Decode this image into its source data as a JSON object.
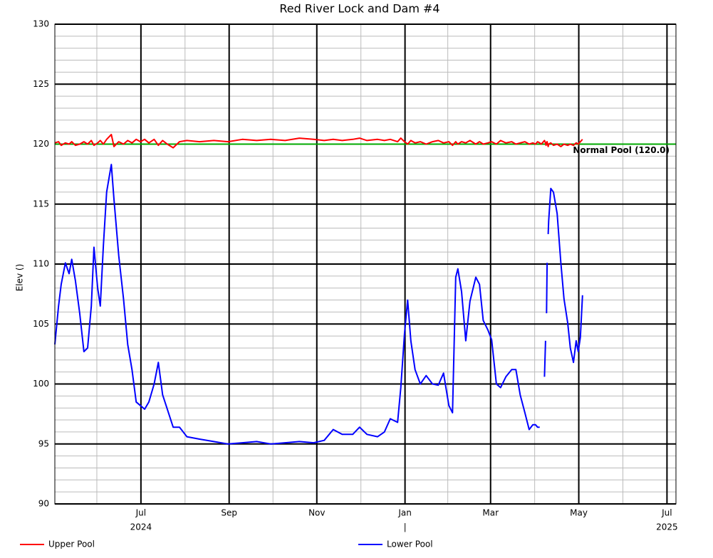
{
  "chart_data": {
    "type": "line",
    "title": "Red River Lock and Dam #4",
    "y_label": "Elev ()",
    "xlim": [
      2024.337,
      2025.513
    ],
    "ylim": [
      90,
      130
    ],
    "yticks": [
      90,
      95,
      100,
      105,
      110,
      115,
      120,
      125,
      130
    ],
    "xticks": [
      {
        "value": 2024.5,
        "label": "Jul"
      },
      {
        "value": 2024.667,
        "label": "Sep"
      },
      {
        "value": 2024.833,
        "label": "Nov"
      },
      {
        "value": 2025.0,
        "label": "Jan"
      },
      {
        "value": 2025.162,
        "label": "Mar"
      },
      {
        "value": 2025.329,
        "label": "May"
      },
      {
        "value": 2025.496,
        "label": "Jul"
      }
    ],
    "x_year_labels": [
      {
        "value": 2024.5,
        "label": "2024"
      },
      {
        "value": 2025.0,
        "label": "|"
      },
      {
        "value": 2025.496,
        "label": "2025"
      }
    ],
    "grid": true,
    "reference_lines": [
      {
        "value": 120,
        "label": "Normal Pool (120.0)",
        "color": "#00aa00"
      }
    ],
    "x": [
      2024.337,
      2024.344,
      2024.349,
      2024.357,
      2024.364,
      2024.369,
      2024.376,
      2024.384,
      2024.392,
      2024.399,
      2024.406,
      2024.411,
      2024.418,
      2024.423,
      2024.429,
      2024.435,
      2024.444,
      2024.449,
      2024.458,
      2024.467,
      2024.475,
      2024.483,
      2024.491,
      2024.499,
      2024.507,
      2024.515,
      2024.525,
      2024.533,
      2024.541,
      2024.55,
      2024.561,
      2024.573,
      2024.587,
      2024.611,
      2024.638,
      2024.665,
      2024.692,
      2024.719,
      2024.746,
      2024.773,
      2024.8,
      2024.827,
      2024.847,
      2024.864,
      2024.881,
      2024.901,
      2024.914,
      2024.928,
      2024.948,
      2024.961,
      2024.972,
      2024.986,
      2024.992,
      2024.999,
      2025.005,
      2025.011,
      2025.019,
      2025.029,
      2025.04,
      2025.052,
      2025.063,
      2025.073,
      2025.083,
      2025.09,
      2025.096,
      2025.1,
      2025.107,
      2025.115,
      2025.123,
      2025.134,
      2025.141,
      2025.148,
      2025.157,
      2025.164,
      2025.173,
      2025.181,
      2025.191,
      2025.202,
      2025.21,
      2025.218,
      2025.227,
      2025.235,
      2025.242,
      2025.247,
      2025.251,
      2025.255,
      2025.258,
      2025.264,
      2025.266,
      2025.267,
      2025.268,
      2025.269,
      2025.27,
      2025.271,
      2025.272,
      2025.276,
      2025.281,
      2025.288,
      2025.295,
      2025.301,
      2025.308,
      2025.313,
      2025.319,
      2025.324,
      2025.328,
      2025.332,
      2025.336
    ],
    "series": [
      {
        "name": "Upper Pool",
        "color": "#ff0000",
        "values": [
          120.1,
          120.2,
          119.9,
          120.1,
          120.0,
          120.2,
          119.9,
          120.0,
          120.2,
          120.0,
          120.3,
          119.9,
          120.1,
          120.3,
          120.0,
          120.4,
          120.8,
          119.8,
          120.2,
          120.0,
          120.3,
          120.1,
          120.4,
          120.2,
          120.4,
          120.1,
          120.4,
          119.9,
          120.3,
          120.0,
          119.7,
          120.2,
          120.3,
          120.2,
          120.3,
          120.2,
          120.4,
          120.3,
          120.4,
          120.3,
          120.5,
          120.4,
          120.3,
          120.4,
          120.3,
          120.4,
          120.5,
          120.3,
          120.4,
          120.3,
          120.4,
          120.2,
          120.5,
          120.2,
          120.0,
          120.3,
          120.1,
          120.2,
          120.0,
          120.2,
          120.3,
          120.1,
          120.2,
          119.9,
          120.2,
          120.0,
          120.2,
          120.1,
          120.3,
          120.0,
          120.2,
          120.0,
          120.1,
          120.2,
          120.0,
          120.3,
          120.1,
          120.2,
          120.0,
          120.1,
          120.2,
          120.0,
          120.1,
          120.0,
          120.2,
          120.1,
          120.0,
          120.3,
          120.1,
          119.9,
          120.1,
          120.2,
          120.0,
          119.8,
          120.0,
          120.1,
          119.9,
          120.0,
          119.8,
          120.0,
          119.9,
          120.0,
          119.9,
          120.1,
          120.0,
          120.2,
          120.4
        ]
      },
      {
        "name": "Lower Pool",
        "color": "#0000ff",
        "values": [
          103.3,
          106.5,
          108.3,
          110.1,
          109.2,
          110.4,
          108.6,
          105.9,
          102.7,
          103.0,
          106.5,
          111.4,
          108.0,
          106.5,
          111.6,
          116.0,
          118.3,
          115.4,
          110.7,
          107.1,
          103.3,
          101.2,
          98.5,
          98.2,
          97.9,
          98.5,
          100.0,
          101.8,
          99.1,
          97.9,
          96.4,
          96.4,
          95.6,
          95.4,
          95.2,
          95.0,
          95.1,
          95.2,
          95.0,
          95.1,
          95.2,
          95.1,
          95.3,
          96.2,
          95.8,
          95.8,
          96.4,
          95.8,
          95.6,
          96.0,
          97.1,
          96.8,
          99.7,
          104.2,
          107.0,
          103.6,
          101.2,
          100.0,
          100.7,
          100.0,
          99.9,
          100.9,
          98.2,
          97.6,
          108.9,
          109.6,
          107.7,
          103.6,
          106.9,
          108.9,
          108.3,
          105.3,
          104.5,
          103.7,
          100.0,
          99.7,
          100.6,
          101.2,
          101.2,
          99.1,
          97.6,
          96.2,
          96.6,
          96.6,
          96.4,
          96.4,
          null,
          100.6,
          103.6,
          null,
          105.9,
          110.1,
          null,
          112.5,
          113.6,
          116.3,
          116.0,
          114.2,
          110.1,
          107.1,
          105.1,
          103.0,
          101.8,
          103.6,
          102.7,
          103.9,
          107.4
        ]
      }
    ]
  }
}
